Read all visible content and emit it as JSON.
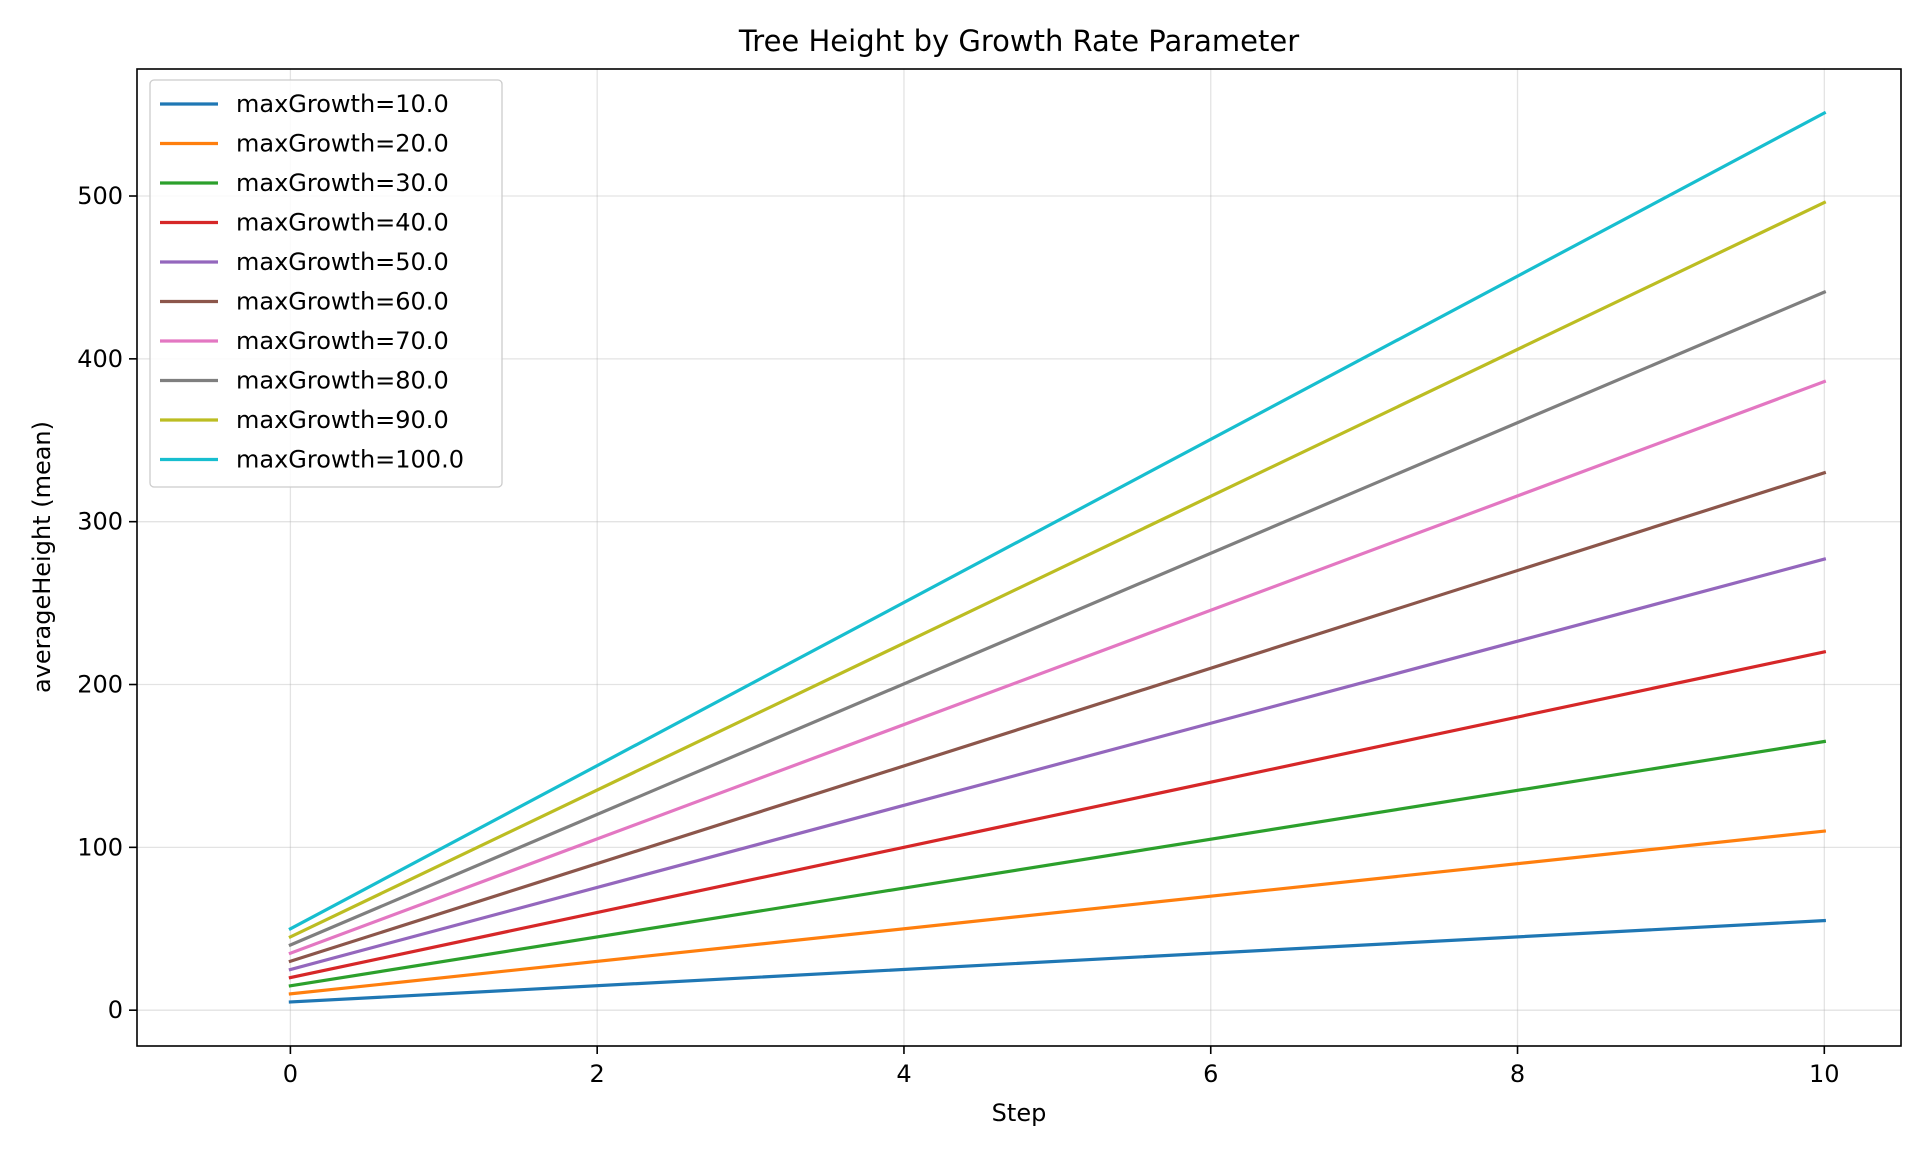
{
  "chart_data": {
    "type": "line",
    "title": "Tree Height by Growth Rate Parameter",
    "xlabel": "Step",
    "ylabel": "averageHeight (mean)",
    "xlim": [
      -1,
      10.5
    ],
    "ylim": [
      -22,
      578
    ],
    "x_ticks": [
      0,
      2,
      4,
      6,
      8,
      10
    ],
    "y_ticks": [
      0,
      100,
      200,
      300,
      400,
      500
    ],
    "grid": true,
    "legend_position": "top-left",
    "x": [
      0,
      10
    ],
    "series": [
      {
        "name": "maxGrowth=10.0",
        "color": "#1f77b4",
        "values": [
          5,
          55
        ]
      },
      {
        "name": "maxGrowth=20.0",
        "color": "#ff7f0e",
        "values": [
          10,
          110
        ]
      },
      {
        "name": "maxGrowth=30.0",
        "color": "#2ca02c",
        "values": [
          15,
          165
        ]
      },
      {
        "name": "maxGrowth=40.0",
        "color": "#d62728",
        "values": [
          20,
          220
        ]
      },
      {
        "name": "maxGrowth=50.0",
        "color": "#9467bd",
        "values": [
          25,
          277
        ]
      },
      {
        "name": "maxGrowth=60.0",
        "color": "#8c564b",
        "values": [
          30,
          330
        ]
      },
      {
        "name": "maxGrowth=70.0",
        "color": "#e377c2",
        "values": [
          35,
          386
        ]
      },
      {
        "name": "maxGrowth=80.0",
        "color": "#7f7f7f",
        "values": [
          40,
          441
        ]
      },
      {
        "name": "maxGrowth=90.0",
        "color": "#bcbd22",
        "values": [
          45,
          496
        ]
      },
      {
        "name": "maxGrowth=100.0",
        "color": "#17becf",
        "values": [
          50,
          551
        ]
      }
    ]
  }
}
